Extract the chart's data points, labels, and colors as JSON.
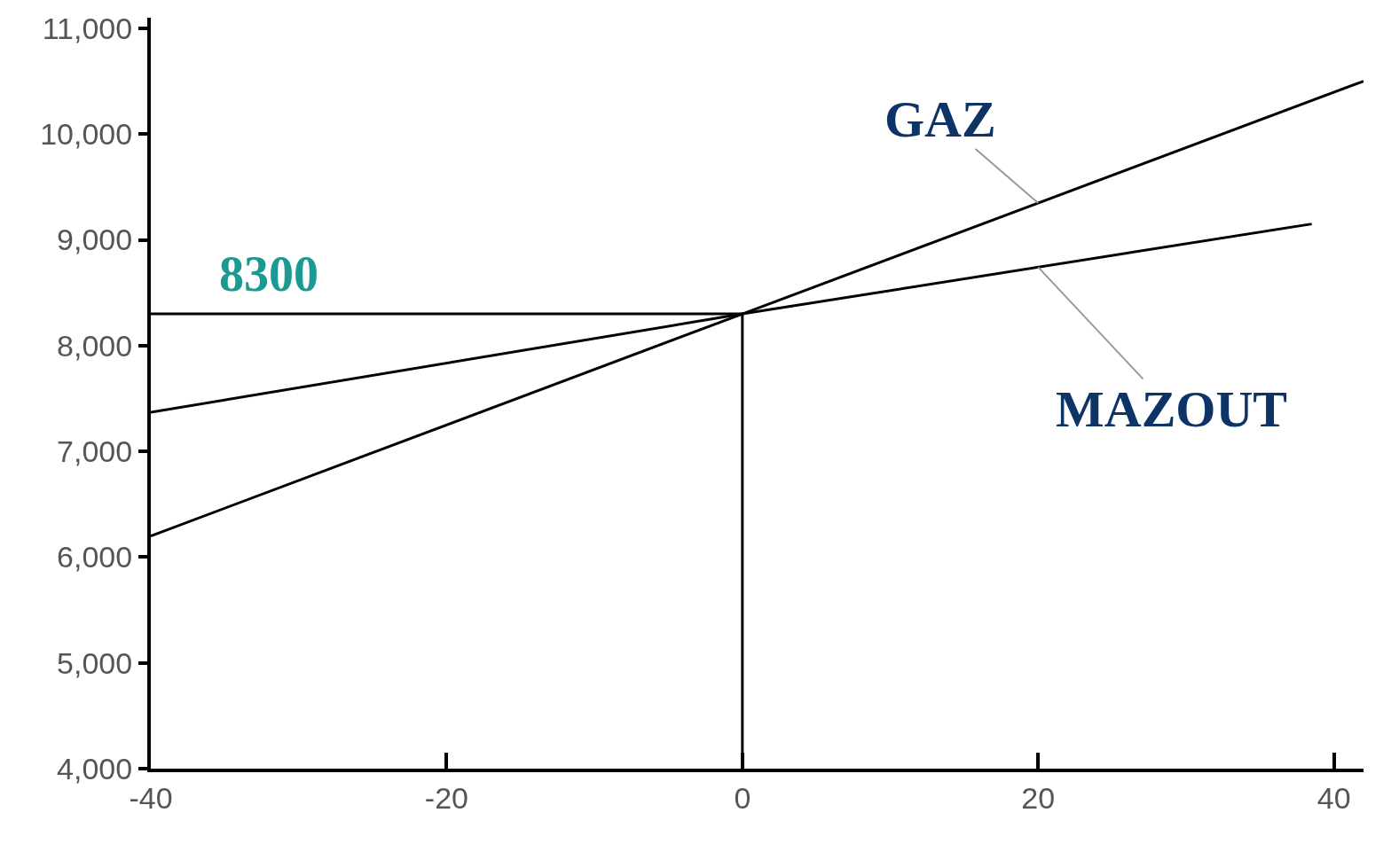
{
  "chart_data": {
    "type": "line",
    "series": [
      {
        "name": "GAZ",
        "color": "#000000",
        "x": [
          -40,
          0,
          42
        ],
        "values": [
          6200,
          8300,
          10500
        ]
      },
      {
        "name": "MAZOUT",
        "color": "#000000",
        "x": [
          -40,
          0,
          38.5
        ],
        "values": [
          7370,
          8300,
          9150
        ]
      },
      {
        "color": "#000000",
        "x": [
          -40,
          0,
          0
        ],
        "values": [
          8300,
          8300,
          4000
        ]
      }
    ],
    "annotations": [
      {
        "text": "8300",
        "x": -32,
        "y": 8300
      }
    ],
    "xlim": [
      -40,
      42
    ],
    "ylim": [
      4000,
      11100
    ],
    "xticks": [
      -40,
      -20,
      0,
      20,
      40
    ],
    "yticks": [
      {
        "value": 4000,
        "label": "4,000"
      },
      {
        "value": 5000,
        "label": "5,000"
      },
      {
        "value": 6000,
        "label": "6,000"
      },
      {
        "value": 7000,
        "label": "7,000"
      },
      {
        "value": 8000,
        "label": "8,000"
      },
      {
        "value": 9000,
        "label": "9,000"
      },
      {
        "value": 10000,
        "label": "10,000"
      },
      {
        "value": 11000,
        "label": "11,000"
      }
    ],
    "legend": false,
    "marker": "none",
    "line_style": "solid"
  }
}
